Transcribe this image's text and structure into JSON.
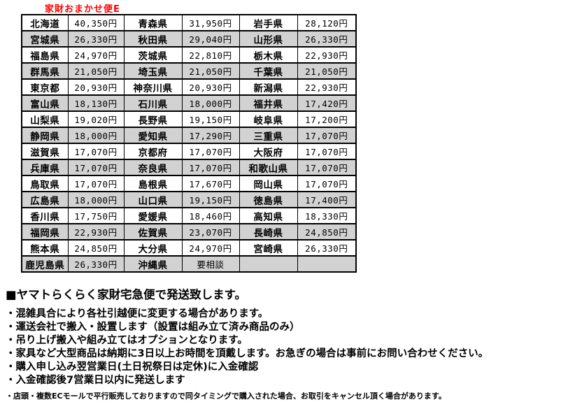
{
  "title": "家財おまかせ便E",
  "colors": {
    "title_red": "#ff0000",
    "alt_row_gray": "#d2d2d2",
    "border_black": "#000000",
    "text_black": "#000000"
  },
  "table": {
    "columns_per_row": 3,
    "rows": [
      [
        {
          "name": "北海道",
          "price": "40,350円"
        },
        {
          "name": "青森県",
          "price": "31,950円"
        },
        {
          "name": "岩手県",
          "price": "28,120円"
        }
      ],
      [
        {
          "name": "宮城県",
          "price": "26,330円"
        },
        {
          "name": "秋田県",
          "price": "29,040円"
        },
        {
          "name": "山形県",
          "price": "26,330円"
        }
      ],
      [
        {
          "name": "福島県",
          "price": "24,970円"
        },
        {
          "name": "茨城県",
          "price": "22,810円"
        },
        {
          "name": "栃木県",
          "price": "22,930円"
        }
      ],
      [
        {
          "name": "群馬県",
          "price": "21,050円"
        },
        {
          "name": "埼玉県",
          "price": "21,050円"
        },
        {
          "name": "千葉県",
          "price": "21,050円"
        }
      ],
      [
        {
          "name": "東京都",
          "price": "20,930円"
        },
        {
          "name": "神奈川県",
          "price": "20,930円"
        },
        {
          "name": "新潟県",
          "price": "22,930円"
        }
      ],
      [
        {
          "name": "富山県",
          "price": "18,130円"
        },
        {
          "name": "石川県",
          "price": "18,000円"
        },
        {
          "name": "福井県",
          "price": "17,420円"
        }
      ],
      [
        {
          "name": "山梨県",
          "price": "19,020円"
        },
        {
          "name": "長野県",
          "price": "19,150円"
        },
        {
          "name": "岐阜県",
          "price": "17,200円"
        }
      ],
      [
        {
          "name": "静岡県",
          "price": "18,000円"
        },
        {
          "name": "愛知県",
          "price": "17,290円"
        },
        {
          "name": "三重県",
          "price": "17,070円"
        }
      ],
      [
        {
          "name": "滋賀県",
          "price": "17,070円"
        },
        {
          "name": "京都府",
          "price": "17,070円"
        },
        {
          "name": "大阪府",
          "price": "17,070円"
        }
      ],
      [
        {
          "name": "兵庫県",
          "price": "17,070円"
        },
        {
          "name": "奈良県",
          "price": "17,070円"
        },
        {
          "name": "和歌山県",
          "price": "17,070円"
        }
      ],
      [
        {
          "name": "鳥取県",
          "price": "17,070円"
        },
        {
          "name": "島根県",
          "price": "17,670円"
        },
        {
          "name": "岡山県",
          "price": "17,070円"
        }
      ],
      [
        {
          "name": "広島県",
          "price": "18,000円"
        },
        {
          "name": "山口県",
          "price": "19,150円"
        },
        {
          "name": "徳島県",
          "price": "17,400円"
        }
      ],
      [
        {
          "name": "香川県",
          "price": "17,750円"
        },
        {
          "name": "愛媛県",
          "price": "18,460円"
        },
        {
          "name": "高知県",
          "price": "18,330円"
        }
      ],
      [
        {
          "name": "福岡県",
          "price": "22,930円"
        },
        {
          "name": "佐賀県",
          "price": "23,070円"
        },
        {
          "name": "長崎県",
          "price": "24,850円"
        }
      ],
      [
        {
          "name": "熊本県",
          "price": "24,850円"
        },
        {
          "name": "大分県",
          "price": "24,970円"
        },
        {
          "name": "宮崎県",
          "price": "26,330円"
        }
      ],
      [
        {
          "name": "鹿児島県",
          "price": "26,330円"
        },
        {
          "name": "沖縄県",
          "price": "要相談"
        },
        {
          "name": "",
          "price": ""
        }
      ]
    ]
  },
  "notes": {
    "heading": "■ヤマトらくらく家財宅急便で発送致します。",
    "bullets": [
      "・混雑具合により各社引越便に変更する場合があります。",
      "・運送会社で搬入・設置します（設置は組み立て済み商品のみ）",
      "・吊り上げ搬入や組み立てはオプションとなります。",
      "・家具など大型商品は納期に3日以上お時間を頂戴します。お急ぎの場合は事前にお問い合わせください。",
      "・購入申し込み翌営業日(土日祝祭日は定休)に入金確認",
      "・入金確認後7営業日以内に発送します"
    ],
    "footnote": "・店頭・複数ECモールで平行販売しておりますので同タイミングで購入された場合、お取引をキャンセル頂く場合があります。"
  }
}
